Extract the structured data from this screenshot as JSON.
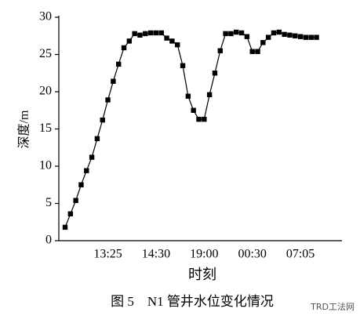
{
  "chart_data": {
    "type": "line",
    "y_label": "深度/m",
    "x_label": "时刻",
    "caption": "图 5　N1 管井水位变化情况",
    "watermark": "TRD工法网",
    "categories": [
      null,
      null,
      null,
      null,
      null,
      null,
      null,
      null,
      "13:25",
      null,
      null,
      null,
      null,
      null,
      null,
      null,
      null,
      "14:30",
      null,
      null,
      null,
      null,
      null,
      null,
      null,
      null,
      "19:00",
      null,
      null,
      null,
      null,
      null,
      null,
      null,
      null,
      "00:30",
      null,
      null,
      null,
      null,
      null,
      null,
      null,
      null,
      "07:05",
      null,
      null,
      null
    ],
    "series": [
      {
        "name": "N1",
        "color": "#000000",
        "values": [
          1.8,
          3.6,
          5.4,
          7.5,
          9.4,
          11.2,
          13.7,
          16.2,
          18.9,
          21.4,
          23.7,
          25.9,
          26.8,
          27.8,
          27.6,
          27.8,
          27.9,
          27.9,
          27.9,
          27.2,
          26.8,
          26.3,
          23.5,
          19.4,
          17.5,
          16.3,
          16.3,
          19.6,
          22.5,
          25.5,
          27.8,
          27.8,
          28.0,
          27.9,
          27.4,
          25.4,
          25.4,
          26.6,
          27.3,
          27.9,
          28.0,
          27.7,
          27.6,
          27.5,
          27.4,
          27.3,
          27.3,
          27.3
        ]
      }
    ],
    "ylim": [
      0,
      30
    ],
    "yticks": [
      0,
      5,
      10,
      15,
      20,
      25,
      30
    ],
    "grid": false
  }
}
